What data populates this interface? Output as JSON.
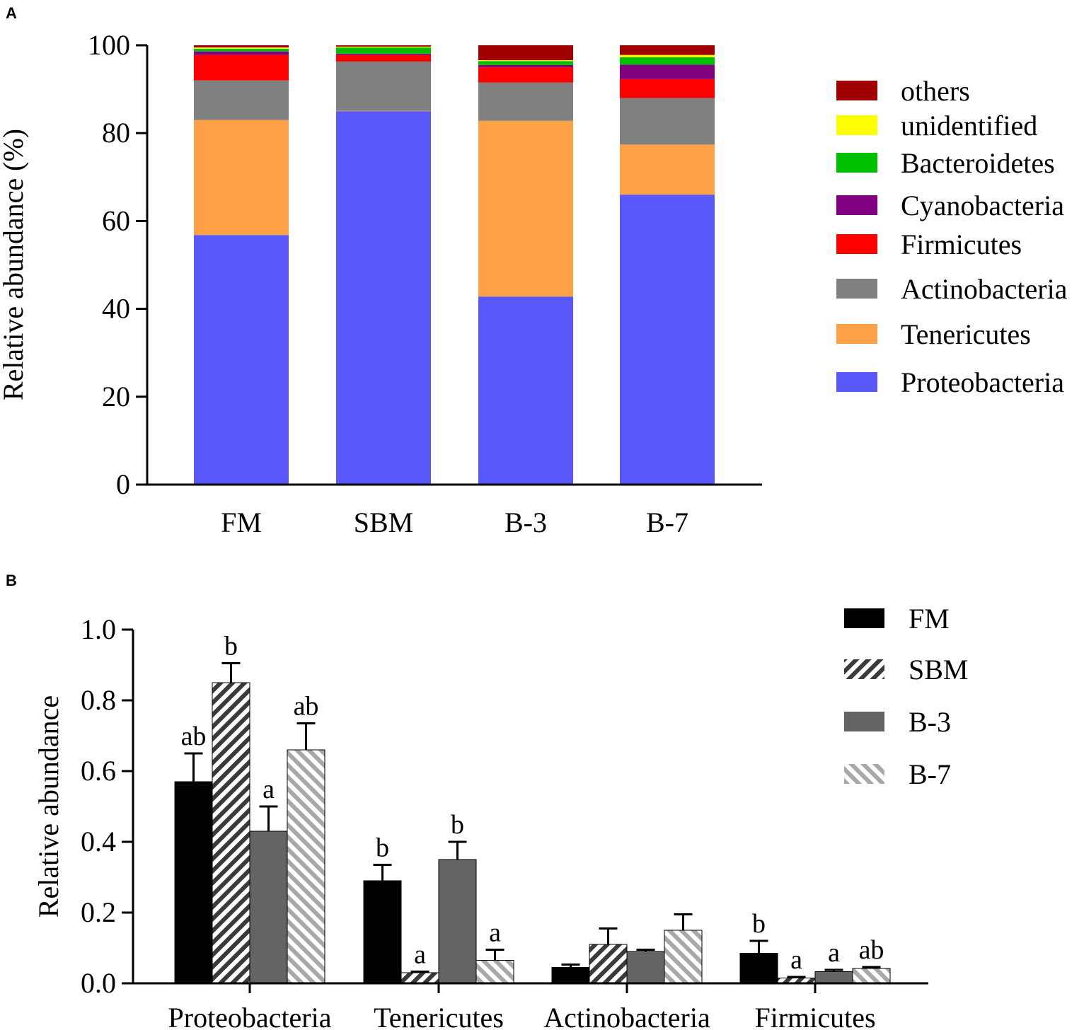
{
  "figure": {
    "panel_a_label": "A",
    "panel_b_label": "B"
  },
  "chart_data": [
    {
      "type": "bar",
      "stacked": true,
      "panel": "A",
      "title": "",
      "xlabel": "",
      "ylabel": "Relative abundance (%)",
      "ylim": [
        0,
        100
      ],
      "yticks": [
        0,
        20,
        40,
        60,
        80,
        100
      ],
      "categories": [
        "FM",
        "SBM",
        "B-3",
        "B-7"
      ],
      "legend_position": "right",
      "series": [
        {
          "name": "Proteobacteria",
          "color": "#5858fa",
          "values": [
            56.8,
            85.0,
            42.8,
            66.0
          ]
        },
        {
          "name": "Tenericutes",
          "color": "#fea045",
          "values": [
            26.2,
            0.1,
            40.0,
            11.4
          ]
        },
        {
          "name": "Actinobacteria",
          "color": "#808080",
          "values": [
            9.0,
            11.2,
            8.7,
            10.6
          ]
        },
        {
          "name": "Firmicutes",
          "color": "#ff0000",
          "values": [
            5.8,
            1.5,
            3.5,
            4.3
          ]
        },
        {
          "name": "Cyanobacteria",
          "color": "#800080",
          "values": [
            0.8,
            0.3,
            0.5,
            3.3
          ]
        },
        {
          "name": "Bacteroidetes",
          "color": "#00c000",
          "values": [
            0.6,
            1.4,
            0.9,
            1.7
          ]
        },
        {
          "name": "unidentified",
          "color": "#ffff00",
          "values": [
            0.3,
            0.2,
            0.2,
            0.5
          ]
        },
        {
          "name": "others",
          "color": "#a00000",
          "values": [
            0.5,
            0.3,
            3.4,
            2.2
          ]
        }
      ]
    },
    {
      "type": "bar",
      "panel": "B",
      "title": "",
      "xlabel": "",
      "ylabel": "Relative abundance",
      "ylim": [
        0,
        1.0
      ],
      "yticks": [
        "0.0",
        "0.2",
        "0.4",
        "0.6",
        "0.8",
        "1.0"
      ],
      "categories": [
        "Proteobacteria",
        "Tenericutes",
        "Actinobacteria",
        "Firmicutes"
      ],
      "legend_position": "top-right",
      "series": [
        {
          "name": "FM",
          "style": "solid-black",
          "values": [
            0.57,
            0.29,
            0.045,
            0.085
          ],
          "errors": [
            0.08,
            0.045,
            0.008,
            0.035
          ],
          "letters": [
            "ab",
            "b",
            "",
            "b"
          ]
        },
        {
          "name": "SBM",
          "style": "hatch-dark",
          "values": [
            0.85,
            0.03,
            0.11,
            0.015
          ],
          "errors": [
            0.055,
            0.003,
            0.045,
            0.003
          ],
          "letters": [
            "b",
            "a",
            "",
            "a"
          ]
        },
        {
          "name": "B-3",
          "style": "solid-gray",
          "values": [
            0.43,
            0.35,
            0.09,
            0.033
          ],
          "errors": [
            0.07,
            0.05,
            0.005,
            0.005
          ],
          "letters": [
            "a",
            "b",
            "",
            "a"
          ]
        },
        {
          "name": "B-7",
          "style": "hatch-light",
          "values": [
            0.66,
            0.065,
            0.15,
            0.042
          ],
          "errors": [
            0.075,
            0.03,
            0.045,
            0.004
          ],
          "letters": [
            "ab",
            "a",
            "",
            "ab"
          ]
        }
      ]
    }
  ]
}
